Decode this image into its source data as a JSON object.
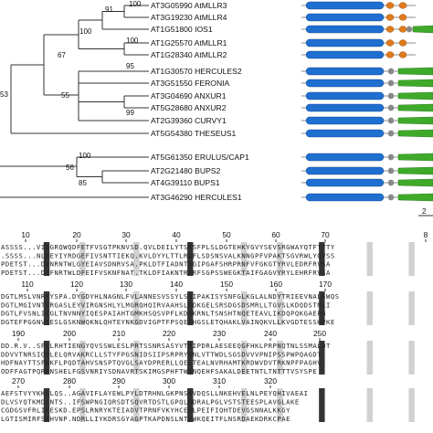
{
  "tree": {
    "leaves": [
      "AT3G05990 AtMLLR3",
      "AT3G19230 AtMLLR4",
      "AT1G51800 IOS1",
      "AT1G25570 AtMLLR1",
      "AT1G28340 AtMLLR2",
      "AT1G30570 HERCULES2",
      "AT3G51550 FERONIA",
      "AT3G04690 ANXUR1",
      "AT5G28680 ANXUR2",
      "AT2G39360 CURVY1",
      "AT5G54380 THESEUS1",
      "AT5G61350 ERULUS/CAP1",
      "AT2G21480 BUPS2",
      "AT4G39110 BUPS1",
      "AT3G46290 HERCULES1"
    ],
    "support_values": [
      "100",
      "91",
      "100",
      "67",
      "100",
      "95",
      "53",
      "55",
      "99",
      "56",
      "85",
      "100"
    ],
    "scale_label": "2"
  },
  "domains": {
    "colors": {
      "malectin": "#1f6fd0",
      "lrr": "#e07a1a",
      "tm": "#888888",
      "kinase": "#3faa2a"
    }
  },
  "alignment": {
    "blocks": [
      {
        "ruler": [
          "10",
          "20",
          "30",
          "40",
          "50",
          "60",
          "70",
          "8"
        ],
        "rows": [
          "ASSSS...VIDGRQWQDFETFVSGTPKNVSD.QVLDEILYTSRSFPLSLDGTEHKYGVYSEVSRGWAYQTFTYTY",
          ".SSSS...NLNEYIYRDGEFIVSNTTIEKQ.KVLDYYLTTLRGFLSDSNSVALKNNGPFVPAKTSGVRWLYQVSS",
          "PDETST...DVNRNTWLGYEIAVSDNRVSA.PKLDTFIADNTSGIPGAFSHRPRNFVFGKGTYRVLEDRFRVSA",
          "PDETST...DVFNRTWLDFEIFVSKNFNAT.TKLDFIAKNTRERFSGPSSWEGKTAIFGAGVYRYLEHRFRVSA"
        ]
      },
      {
        "ruler": [
          "110",
          "120",
          "130",
          "140",
          "150",
          "160",
          "170"
        ],
        "rows": [
          "DGTLMSLVNRYYSPA.DYGDYHLNAGNLFVLANNESVSSYLSGIPAKISYSNFGLKGLALNDYTRIEEVNALEWQS",
          "DGTLMGIVNTVRGASLEYVIRGNSHLYLMGRQHQIRVAAHSLSDKGELSRSDGSDSMRLLTGVSLKDQDSTNLI",
          "DGTLFVSNLIVGLTNVNNYIQESPAIAHTGMKHSQSVPFLKDGKRNLTSNSHTNQETEAVLIKDQPQKGAEPG",
          "DGTEFPGGNVIESLGSKNWQKNLQHTEYNKGDVIGPTFPSQEYHGSLETQHAKLVAINQKVLLKVGDTESSHPKE"
        ]
      },
      {
        "ruler": [
          "190",
          "200",
          "210",
          "220",
          "230",
          "240",
          "250"
        ],
        "rows": [
          "DD.R.V..SPFLRHTIENGYQVSSWLESLPRTSSNRSASYVTRIPDRLAESEEQGFHKLPRPNQTNLSSMALQT",
          "DDVVTNRSIGPLELQRVAKRCLLSTYFPGSNIDSIIPSRPRYANLVTTWDLSGSDVVVPNIPSSPWPQAGDT",
          "HDFNAYTTSFNKFLPQDTAHVSNSPTQVGLSAYDPRERLLQELTEALNVRHAMTKRDWVDVTRKNPFPAGHV",
          "ODFFAGTPQRRNSHELFGSVNRIYSDNAVRTSKIMGSPHFTWTNQEHFSAKALDEETNTLTNTTTVSYSPE"
        ]
      },
      {
        "ruler": [
          "270",
          "280",
          "290",
          "300",
          "310",
          "320"
        ],
        "rows": [
          "AEFSTVYYKKSLQS..AGAVIFLAYEWLPYLDTRHNLGKPNSKVDQSLLNKEHVELNLPEYQHIVAEAI",
          "DLVSYQTKMDLNTS..IFSWPNGIQRSDTSQVRTDSTLGPQLNDRALPGLVSTSTEESPLAVGLAKE",
          "CGDGSVFRLIRESKD.EPSLRNRYKTEIADVTPRNFVKYHCERLPEIFIQHTDEVGSNNALKKGY",
          "LGTISMIRFSPHVNP.NDRLLIYKDRSGYAGPTKAPDNSLNTYWKQEITFLNSRDAEKDRKCPAE"
        ]
      }
    ]
  }
}
